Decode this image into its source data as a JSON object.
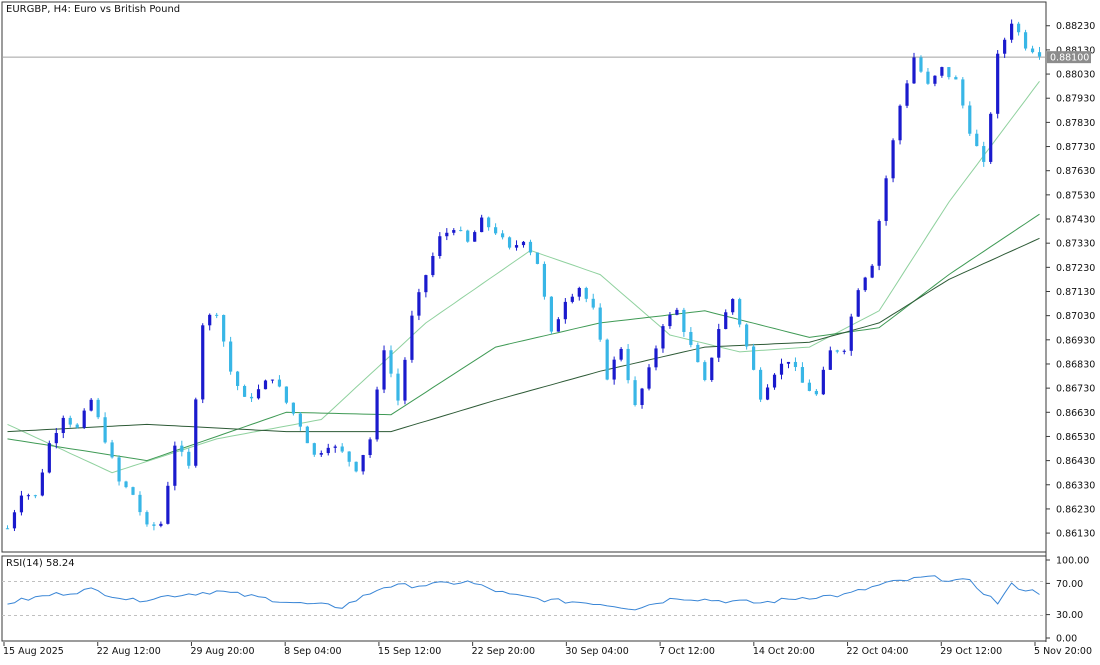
{
  "chart_title": "EURGBP, H4:  Euro vs British Pound",
  "current_price": "0.88100",
  "rsi_label": "RSI(14) 58.24",
  "price_ticks": [
    "0.88230",
    "0.88130",
    "0.88030",
    "0.87930",
    "0.87830",
    "0.87730",
    "0.87630",
    "0.87530",
    "0.87430",
    "0.87330",
    "0.87230",
    "0.87130",
    "0.87030",
    "0.86930",
    "0.86830",
    "0.86730",
    "0.86630",
    "0.86530",
    "0.86430",
    "0.86330",
    "0.86230",
    "0.86130"
  ],
  "rsi_ticks": [
    "100.00",
    "70.00",
    "30.00",
    "0.00"
  ],
  "time_ticks": [
    "15 Aug 2025",
    "22 Aug 12:00",
    "29 Aug 20:00",
    "8 Sep 04:00",
    "15 Sep 12:00",
    "22 Sep 20:00",
    "30 Sep 04:00",
    "7 Oct 12:00",
    "14 Oct 20:00",
    "22 Oct 04:00",
    "29 Oct 12:00",
    "5 Nov 20:00"
  ],
  "colors": {
    "bull": "#1a1acd",
    "bear": "#38b6e6",
    "ma_fast": "#8fd19e",
    "ma_mid": "#3f9a55",
    "ma_slow": "#2d5a36",
    "rsi_line": "#3a86d6",
    "frame": "#3a3a3a"
  },
  "chart_data": {
    "type": "candlestick",
    "symbol": "EURGBP",
    "timeframe": "H4",
    "y_range": [
      0.8606,
      0.8832
    ],
    "current_price": 0.881,
    "price_path": [
      [
        0,
        0.8615
      ],
      [
        2,
        0.863
      ],
      [
        4,
        0.8628
      ],
      [
        6,
        0.865
      ],
      [
        8,
        0.8662
      ],
      [
        10,
        0.8656
      ],
      [
        12,
        0.8668
      ],
      [
        14,
        0.8652
      ],
      [
        16,
        0.8634
      ],
      [
        18,
        0.8629
      ],
      [
        20,
        0.8615
      ],
      [
        22,
        0.8617
      ],
      [
        24,
        0.865
      ],
      [
        26,
        0.864
      ],
      [
        28,
        0.87
      ],
      [
        30,
        0.8705
      ],
      [
        32,
        0.868
      ],
      [
        34,
        0.8668
      ],
      [
        36,
        0.8672
      ],
      [
        38,
        0.8678
      ],
      [
        40,
        0.8667
      ],
      [
        42,
        0.8658
      ],
      [
        44,
        0.8645
      ],
      [
        46,
        0.865
      ],
      [
        48,
        0.8646
      ],
      [
        50,
        0.864
      ],
      [
        52,
        0.8652
      ],
      [
        54,
        0.869
      ],
      [
        56,
        0.8668
      ],
      [
        58,
        0.8702
      ],
      [
        60,
        0.872
      ],
      [
        62,
        0.8735
      ],
      [
        64,
        0.874
      ],
      [
        66,
        0.8733
      ],
      [
        68,
        0.8742
      ],
      [
        70,
        0.8738
      ],
      [
        72,
        0.873
      ],
      [
        74,
        0.8735
      ],
      [
        76,
        0.8725
      ],
      [
        78,
        0.8695
      ],
      [
        80,
        0.871
      ],
      [
        82,
        0.8715
      ],
      [
        84,
        0.8705
      ],
      [
        86,
        0.8678
      ],
      [
        88,
        0.869
      ],
      [
        90,
        0.8665
      ],
      [
        92,
        0.868
      ],
      [
        94,
        0.87
      ],
      [
        96,
        0.8705
      ],
      [
        98,
        0.869
      ],
      [
        100,
        0.8675
      ],
      [
        102,
        0.8698
      ],
      [
        104,
        0.871
      ],
      [
        106,
        0.869
      ],
      [
        108,
        0.867
      ],
      [
        110,
        0.868
      ],
      [
        112,
        0.8685
      ],
      [
        114,
        0.8675
      ],
      [
        116,
        0.867
      ],
      [
        118,
        0.8688
      ],
      [
        120,
        0.869
      ],
      [
        122,
        0.8715
      ],
      [
        124,
        0.8725
      ],
      [
        126,
        0.876
      ],
      [
        128,
        0.879
      ],
      [
        130,
        0.881
      ],
      [
        132,
        0.8798
      ],
      [
        134,
        0.8805
      ],
      [
        136,
        0.88
      ],
      [
        138,
        0.878
      ],
      [
        140,
        0.8765
      ],
      [
        142,
        0.881
      ],
      [
        144,
        0.8825
      ],
      [
        146,
        0.8815
      ],
      [
        148,
        0.8812
      ]
    ],
    "rsi": {
      "period": 14,
      "value": 58.24,
      "range": [
        0,
        100
      ],
      "levels": [
        70,
        30
      ],
      "path": [
        [
          0,
          45
        ],
        [
          6,
          55
        ],
        [
          12,
          62
        ],
        [
          18,
          48
        ],
        [
          24,
          55
        ],
        [
          30,
          60
        ],
        [
          36,
          52
        ],
        [
          42,
          44
        ],
        [
          48,
          40
        ],
        [
          54,
          66
        ],
        [
          60,
          68
        ],
        [
          66,
          72
        ],
        [
          72,
          55
        ],
        [
          78,
          48
        ],
        [
          84,
          45
        ],
        [
          90,
          38
        ],
        [
          96,
          52
        ],
        [
          102,
          48
        ],
        [
          108,
          45
        ],
        [
          114,
          52
        ],
        [
          120,
          55
        ],
        [
          126,
          70
        ],
        [
          132,
          78
        ],
        [
          138,
          72
        ],
        [
          142,
          45
        ],
        [
          144,
          68
        ],
        [
          146,
          62
        ],
        [
          148,
          58
        ]
      ]
    },
    "moving_averages": [
      {
        "path": [
          [
            0,
            0.8658
          ],
          [
            15,
            0.8638
          ],
          [
            30,
            0.8652
          ],
          [
            45,
            0.866
          ],
          [
            60,
            0.87
          ],
          [
            75,
            0.873
          ],
          [
            85,
            0.872
          ],
          [
            95,
            0.8695
          ],
          [
            105,
            0.8688
          ],
          [
            115,
            0.869
          ],
          [
            125,
            0.8705
          ],
          [
            135,
            0.875
          ],
          [
            148,
            0.88
          ]
        ]
      },
      {
        "path": [
          [
            0,
            0.8652
          ],
          [
            20,
            0.8643
          ],
          [
            40,
            0.8663
          ],
          [
            55,
            0.8662
          ],
          [
            70,
            0.869
          ],
          [
            85,
            0.87
          ],
          [
            100,
            0.8705
          ],
          [
            115,
            0.8694
          ],
          [
            125,
            0.8698
          ],
          [
            135,
            0.872
          ],
          [
            148,
            0.8745
          ]
        ]
      },
      {
        "path": [
          [
            0,
            0.8655
          ],
          [
            20,
            0.8658
          ],
          [
            40,
            0.8655
          ],
          [
            55,
            0.8655
          ],
          [
            70,
            0.8668
          ],
          [
            85,
            0.868
          ],
          [
            100,
            0.869
          ],
          [
            115,
            0.8692
          ],
          [
            125,
            0.87
          ],
          [
            135,
            0.8718
          ],
          [
            148,
            0.8735
          ]
        ]
      }
    ]
  }
}
